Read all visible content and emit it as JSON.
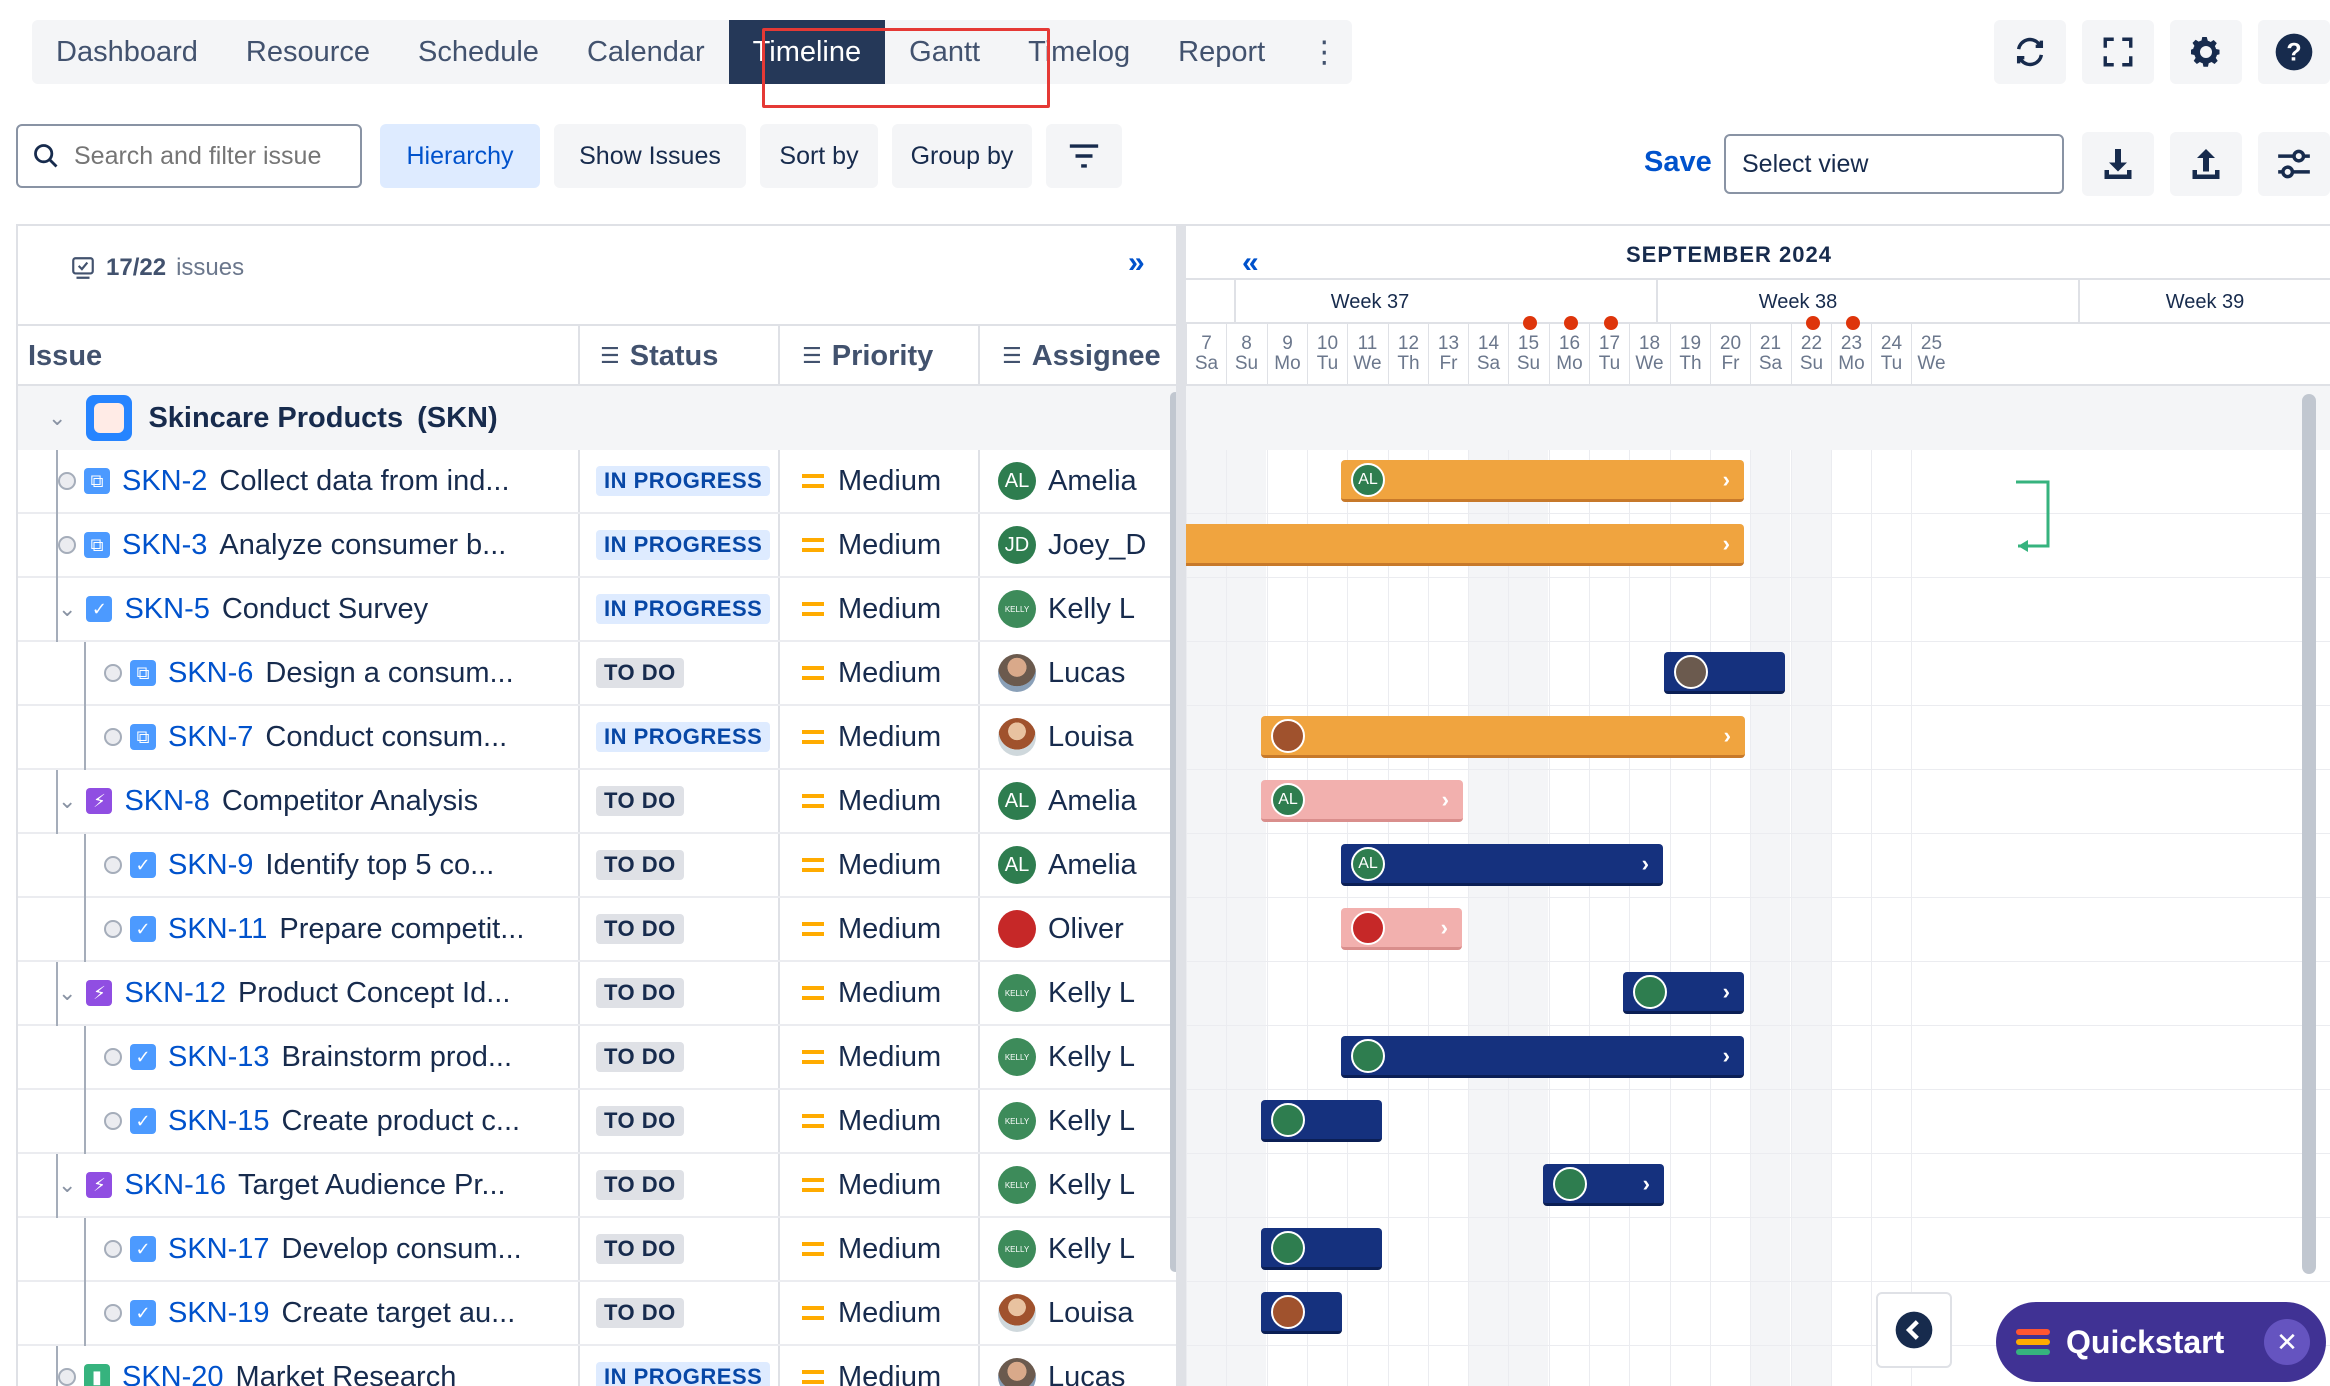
{
  "nav": {
    "tabs": [
      "Dashboard",
      "Resource",
      "Schedule",
      "Calendar",
      "Timeline",
      "Gantt",
      "Timelog",
      "Report"
    ],
    "active": "Timeline"
  },
  "toolbar": {
    "search_placeholder": "Search and filter issue",
    "hierarchy": "Hierarchy",
    "show_issues": "Show Issues",
    "sort_by": "Sort by",
    "group_by": "Group by",
    "save": "Save",
    "select_view": "Select view"
  },
  "left": {
    "issue_count": "17/22",
    "issue_count_suffix": "issues",
    "headers": {
      "issue": "Issue",
      "status": "Status",
      "priority": "Priority",
      "assignee": "Assignee"
    },
    "group": {
      "title": "Skincare Products",
      "key": "(SKN)"
    },
    "rows": [
      {
        "key": "SKN-2",
        "summary": "Collect data from ind...",
        "status": "IN PROGRESS",
        "priority": "Medium",
        "assignee": "Amelia",
        "initials": "AL"
      },
      {
        "key": "SKN-3",
        "summary": "Analyze consumer b...",
        "status": "IN PROGRESS",
        "priority": "Medium",
        "assignee": "Joey_D",
        "initials": "JD"
      },
      {
        "key": "SKN-5",
        "summary": "Conduct Survey",
        "status": "IN PROGRESS",
        "priority": "Medium",
        "assignee": "Kelly L",
        "initials": "KELLY"
      },
      {
        "key": "SKN-6",
        "summary": "Design a consum...",
        "status": "TO DO",
        "priority": "Medium",
        "assignee": "Lucas",
        "initials": ""
      },
      {
        "key": "SKN-7",
        "summary": "Conduct consum...",
        "status": "IN PROGRESS",
        "priority": "Medium",
        "assignee": "Louisa",
        "initials": ""
      },
      {
        "key": "SKN-8",
        "summary": "Competitor Analysis",
        "status": "TO DO",
        "priority": "Medium",
        "assignee": "Amelia",
        "initials": "AL"
      },
      {
        "key": "SKN-9",
        "summary": "Identify top 5 co...",
        "status": "TO DO",
        "priority": "Medium",
        "assignee": "Amelia",
        "initials": "AL"
      },
      {
        "key": "SKN-11",
        "summary": "Prepare competit...",
        "status": "TO DO",
        "priority": "Medium",
        "assignee": "Oliver",
        "initials": ""
      },
      {
        "key": "SKN-12",
        "summary": "Product Concept Id...",
        "status": "TO DO",
        "priority": "Medium",
        "assignee": "Kelly L",
        "initials": "KELLY"
      },
      {
        "key": "SKN-13",
        "summary": "Brainstorm prod...",
        "status": "TO DO",
        "priority": "Medium",
        "assignee": "Kelly L",
        "initials": "KELLY"
      },
      {
        "key": "SKN-15",
        "summary": "Create product c...",
        "status": "TO DO",
        "priority": "Medium",
        "assignee": "Kelly L",
        "initials": "KELLY"
      },
      {
        "key": "SKN-16",
        "summary": "Target Audience Pr...",
        "status": "TO DO",
        "priority": "Medium",
        "assignee": "Kelly L",
        "initials": "KELLY"
      },
      {
        "key": "SKN-17",
        "summary": "Develop consum...",
        "status": "TO DO",
        "priority": "Medium",
        "assignee": "Kelly L",
        "initials": "KELLY"
      },
      {
        "key": "SKN-19",
        "summary": "Create target au...",
        "status": "TO DO",
        "priority": "Medium",
        "assignee": "Louisa",
        "initials": ""
      },
      {
        "key": "SKN-20",
        "summary": "Market Research",
        "status": "IN PROGRESS",
        "priority": "Medium",
        "assignee": "Lucas",
        "initials": ""
      }
    ]
  },
  "timeline": {
    "month": "SEPTEMBER 2024",
    "weeks": [
      "Week 37",
      "Week 38",
      "Week 39"
    ],
    "days": [
      {
        "n": "7",
        "d": "Sa"
      },
      {
        "n": "8",
        "d": "Su"
      },
      {
        "n": "9",
        "d": "Mo"
      },
      {
        "n": "10",
        "d": "Tu"
      },
      {
        "n": "11",
        "d": "We"
      },
      {
        "n": "12",
        "d": "Th"
      },
      {
        "n": "13",
        "d": "Fr"
      },
      {
        "n": "14",
        "d": "Sa"
      },
      {
        "n": "15",
        "d": "Su"
      },
      {
        "n": "16",
        "d": "Mo"
      },
      {
        "n": "17",
        "d": "Tu"
      },
      {
        "n": "18",
        "d": "We"
      },
      {
        "n": "19",
        "d": "Th"
      },
      {
        "n": "20",
        "d": "Fr"
      },
      {
        "n": "21",
        "d": "Sa"
      },
      {
        "n": "22",
        "d": "Su"
      },
      {
        "n": "23",
        "d": "Mo"
      },
      {
        "n": "24",
        "d": "Tu"
      },
      {
        "n": "25",
        "d": "We"
      }
    ],
    "holidays": [
      "15",
      "16",
      "17",
      "22",
      "23"
    ]
  },
  "quickstart": "Quickstart",
  "colors": {
    "accent": "#0052cc",
    "nav_active": "#253858",
    "bar_orange": "#f0a43f",
    "bar_pink": "#f2b0ae",
    "bar_navy": "#15317e",
    "quickstart": "#403294"
  }
}
